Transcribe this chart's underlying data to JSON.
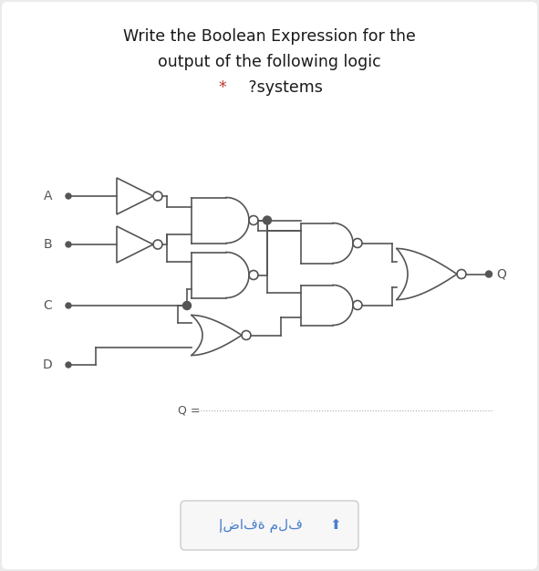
{
  "title_line1": "Write the Boolean Expression for the",
  "title_line2": "output of the following logic",
  "title_line3_star": "*",
  "title_line3_text": " ?systems",
  "title_color": "#1a1a1a",
  "star_color": "#c0392b",
  "bg_color": "#ebebeb",
  "card_color": "#ffffff",
  "line_color": "#555555",
  "label_A": "A",
  "label_B": "B",
  "label_C": "C",
  "label_D": "D",
  "label_Q": "Q",
  "q_label": "Q =",
  "button_text": "إضافة ملف",
  "button_color": "#f7f7f7",
  "button_border": "#cccccc",
  "button_text_color": "#4a7fcb",
  "lw": 1.2
}
